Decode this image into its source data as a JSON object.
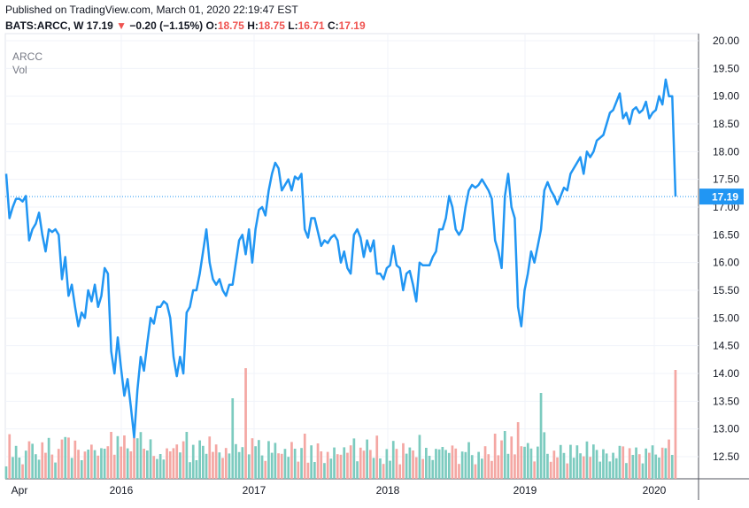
{
  "header": {
    "published": "Published on TradingView.com, March 01, 2020 22:19:47 EST",
    "symbol": "BATS:ARCC, W",
    "last": "17.19",
    "change_arrow": "▼",
    "change": "−0.20 (−1.15%)",
    "open_label": "O:",
    "open": "18.75",
    "high_label": "H:",
    "high": "18.75",
    "low_label": "L:",
    "low": "16.71",
    "close_label": "C:",
    "close": "17.19"
  },
  "legend": {
    "symbol": "ARCC",
    "volume": "Vol"
  },
  "colors": {
    "line": "#2196f3",
    "up_volume": "#7ccbbf",
    "down_volume": "#f4a7a3",
    "last_label_bg": "#2196f3",
    "down": "#ef5350"
  },
  "chart_data": {
    "type": "line",
    "title": "ARCC",
    "ylim": [
      12.0,
      20.0
    ],
    "y_ticks": [
      "20.00",
      "19.50",
      "19.00",
      "18.50",
      "18.00",
      "17.50",
      "17.00",
      "16.50",
      "16.00",
      "15.50",
      "15.00",
      "14.50",
      "14.00",
      "13.50",
      "13.00",
      "12.50"
    ],
    "x_ticks": [
      "Apr",
      "2016",
      "2017",
      "2018",
      "2019",
      "2020"
    ],
    "last_value_label": "17.19",
    "series": [
      {
        "values": [
          17.6,
          16.8,
          17.0,
          17.15,
          17.15,
          17.1,
          17.2,
          16.4,
          16.6,
          16.7,
          16.9,
          16.5,
          16.2,
          16.6,
          16.55,
          16.6,
          16.5,
          15.7,
          16.1,
          15.4,
          15.6,
          15.2,
          14.85,
          15.1,
          15.0,
          15.5,
          15.3,
          15.6,
          15.2,
          15.4,
          15.9,
          15.8,
          14.4,
          14.0,
          14.65,
          14.1,
          13.6,
          13.9,
          13.4,
          12.85,
          13.7,
          14.3,
          14.05,
          14.55,
          15.0,
          14.9,
          15.2,
          15.2,
          15.3,
          15.25,
          15.0,
          14.3,
          13.95,
          14.3,
          14.0,
          15.1,
          15.2,
          15.5,
          15.5,
          15.8,
          16.2,
          16.6,
          16.0,
          15.7,
          15.6,
          15.7,
          15.5,
          15.4,
          15.6,
          15.6,
          16.0,
          16.4,
          16.5,
          16.15,
          16.6,
          16.0,
          16.6,
          16.95,
          17.0,
          16.85,
          17.3,
          17.6,
          17.8,
          17.7,
          17.3,
          17.4,
          17.5,
          17.3,
          17.55,
          17.5,
          17.6,
          16.6,
          16.45,
          16.8,
          16.8,
          16.55,
          16.3,
          16.4,
          16.35,
          16.45,
          16.5,
          16.4,
          16.0,
          16.2,
          15.9,
          15.8,
          16.5,
          16.6,
          16.45,
          16.1,
          16.4,
          16.2,
          16.4,
          15.8,
          15.8,
          15.7,
          15.9,
          15.95,
          16.3,
          15.95,
          15.9,
          15.5,
          15.8,
          15.85,
          15.6,
          15.3,
          16.0,
          15.95,
          15.95,
          15.95,
          16.1,
          16.2,
          16.6,
          16.6,
          16.8,
          17.2,
          17.0,
          16.6,
          16.5,
          16.6,
          17.0,
          17.3,
          17.4,
          17.35,
          17.4,
          17.5,
          17.4,
          17.3,
          17.15,
          16.4,
          16.2,
          15.9,
          17.2,
          17.6,
          17.0,
          16.8,
          15.2,
          14.85,
          15.5,
          15.8,
          16.2,
          16.0,
          16.3,
          16.6,
          17.3,
          17.45,
          17.3,
          17.2,
          17.05,
          17.2,
          17.35,
          17.3,
          17.6,
          17.7,
          17.8,
          17.9,
          17.6,
          18.0,
          17.9,
          18.0,
          18.2,
          18.25,
          18.3,
          18.5,
          18.7,
          18.75,
          18.9,
          19.05,
          18.6,
          18.7,
          18.5,
          18.75,
          18.8,
          18.7,
          18.75,
          18.9,
          18.6,
          18.7,
          18.75,
          19.0,
          18.85,
          19.3,
          19.0,
          19.0,
          17.19
        ]
      }
    ]
  }
}
